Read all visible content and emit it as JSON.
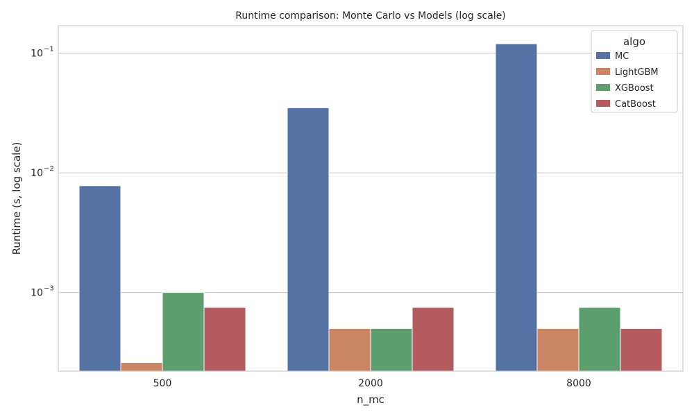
{
  "chart_data": {
    "type": "bar",
    "title": "Runtime comparison: Monte Carlo vs Models (log scale)",
    "xlabel": "n_mc",
    "ylabel": "Runtime (s, log scale)",
    "yscale": "log",
    "ylim": [
      0.00022,
      0.17
    ],
    "grid": "y",
    "legend_title": "algo",
    "legend_position": "top-right",
    "categories": [
      "500",
      "2000",
      "8000"
    ],
    "y_ticks": [
      {
        "value": 0.001,
        "base": "10",
        "exp": "−3"
      },
      {
        "value": 0.01,
        "base": "10",
        "exp": "−2"
      },
      {
        "value": 0.1,
        "base": "10",
        "exp": "−1"
      }
    ],
    "series": [
      {
        "name": "MC",
        "color": "#5572a5",
        "values": [
          0.0078,
          0.035,
          0.12
        ]
      },
      {
        "name": "LightGBM",
        "color": "#cc8563",
        "values": [
          0.00026,
          0.0005,
          0.0005
        ]
      },
      {
        "name": "XGBoost",
        "color": "#5c9e6d",
        "values": [
          0.001,
          0.0005,
          0.00075
        ]
      },
      {
        "name": "CatBoost",
        "color": "#b35b5f",
        "values": [
          0.00075,
          0.00075,
          0.0005
        ]
      }
    ]
  }
}
